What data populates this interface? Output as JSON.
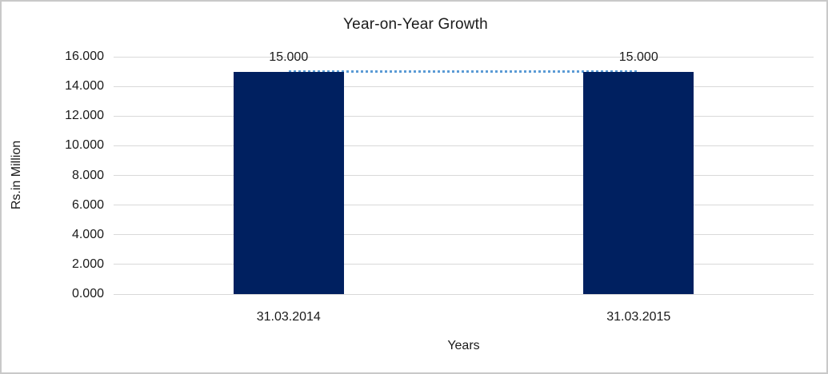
{
  "chart_data": {
    "type": "bar",
    "title": "Year-on-Year Growth",
    "xlabel": "Years",
    "ylabel": "Rs.in Million",
    "categories": [
      "31.03.2014",
      "31.03.2015"
    ],
    "values": [
      15.0,
      15.0
    ],
    "data_labels": [
      "15.000",
      "15.000"
    ],
    "yticks": [
      "0.000",
      "2.000",
      "4.000",
      "6.000",
      "8.000",
      "10.000",
      "12.000",
      "14.000",
      "16.000"
    ],
    "ylim": [
      0,
      16
    ],
    "grid": "horizontal",
    "legend": "none",
    "connector_line": {
      "style": "dotted",
      "from_value": 15.0,
      "to_value": 15.0
    },
    "colors": {
      "bar": "#002060",
      "gridline": "#d9d9d9",
      "connector": "#5b9bd5",
      "frame_border": "#c9c9c9",
      "text": "#1a1a1a",
      "background": "#ffffff"
    }
  }
}
